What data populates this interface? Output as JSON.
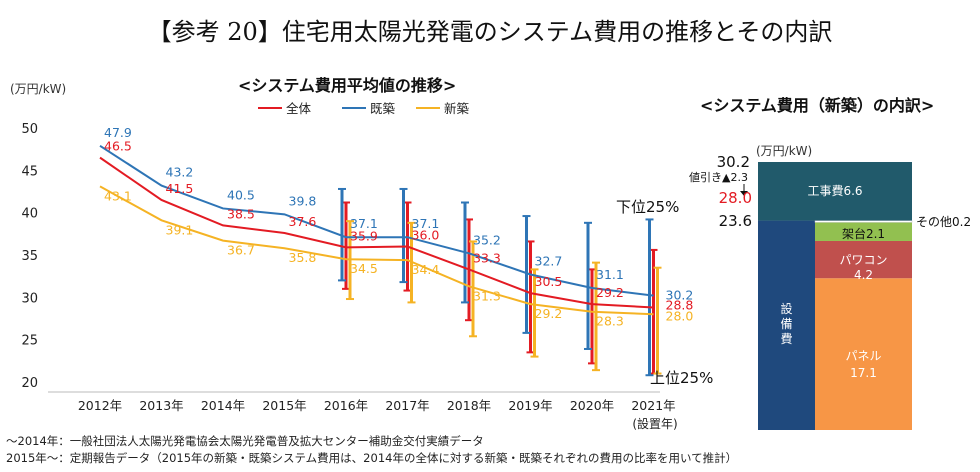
{
  "title": "【参考 20】住宅用太陽光発電のシステム費用の推移とその内訳",
  "left_chart": {
    "subtitle": "<システム費用平均値の推移>",
    "unit": "(万円/kW)"
  },
  "right_chart": {
    "subtitle": "<システム費用（新築）の内訳>",
    "unit": "(万円/kW)"
  },
  "footnotes": [
    "～2014年：一般社団法人太陽光発電協会太陽光発電普及拡大センター補助金交付実績データ",
    "2015年～：定期報告データ（2015年の新築・既築システム費用は、2014年の全体に対する新築・既築それぞれの費用の比率を用いて推計）"
  ],
  "colors": {
    "zentai": "#e31b23",
    "kichiku": "#2e75b6",
    "shinchiku": "#f5b324",
    "koujihi": "#215a6b",
    "setsubihi": "#1f497d",
    "kadai": "#92c050",
    "pawakon": "#c0504d",
    "panel": "#f79646"
  },
  "chart_data": [
    {
      "type": "line",
      "title": "<システム費用平均値の推移>",
      "xlabel": "(設置年)",
      "ylabel": "(万円/kW)",
      "categories": [
        "2012年",
        "2013年",
        "2014年",
        "2015年",
        "2016年",
        "2017年",
        "2018年",
        "2019年",
        "2020年",
        "2021年"
      ],
      "ylim": [
        20,
        50
      ],
      "yticks": [
        20,
        25,
        30,
        35,
        40,
        45,
        50
      ],
      "grid": false,
      "legend": "top",
      "series": [
        {
          "name": "全体",
          "color": "#e31b23",
          "values": [
            46.5,
            41.5,
            38.5,
            37.6,
            35.9,
            36.0,
            33.3,
            30.5,
            29.2,
            28.8
          ],
          "range_low": [
            null,
            null,
            null,
            null,
            31.0,
            30.8,
            27.3,
            23.5,
            22.2,
            21.0
          ],
          "range_high": [
            null,
            null,
            null,
            null,
            41.2,
            41.2,
            39.2,
            36.6,
            33.3,
            35.6
          ]
        },
        {
          "name": "既築",
          "color": "#2e75b6",
          "values": [
            47.9,
            43.2,
            40.5,
            39.8,
            37.1,
            37.1,
            35.2,
            32.7,
            31.1,
            30.2
          ],
          "range_low": [
            null,
            null,
            null,
            null,
            32.0,
            31.8,
            29.4,
            25.8,
            23.9,
            20.8
          ],
          "range_high": [
            null,
            null,
            null,
            null,
            42.8,
            42.8,
            41.2,
            39.6,
            38.8,
            39.2
          ]
        },
        {
          "name": "新築",
          "color": "#f5b324",
          "values": [
            43.1,
            39.1,
            36.7,
            35.8,
            34.5,
            34.4,
            31.3,
            29.2,
            28.3,
            28.0
          ],
          "range_low": [
            null,
            null,
            null,
            null,
            29.8,
            29.4,
            25.4,
            23.0,
            21.4,
            21.0
          ],
          "range_high": [
            null,
            null,
            null,
            null,
            39.0,
            38.8,
            36.6,
            33.3,
            34.1,
            33.5
          ]
        }
      ],
      "annotations": [
        "下位25%",
        "上位25%"
      ]
    },
    {
      "type": "bar",
      "title": "<システム費用（新築）の内訳>",
      "ylabel": "(万円/kW)",
      "stacked": true,
      "components": [
        {
          "name": "パネル",
          "value": 17.1,
          "color": "#f79646",
          "label_lines": [
            "パネル",
            "17.1"
          ]
        },
        {
          "name": "パワコン",
          "value": 4.2,
          "color": "#c0504d",
          "label_lines": [
            "パワコン",
            "4.2"
          ]
        },
        {
          "name": "架台",
          "value": 2.1,
          "color": "#92c050",
          "label_lines": [
            "架台2.1"
          ]
        },
        {
          "name": "その他",
          "value": 0.2,
          "color": "#ffffff",
          "label_lines": [
            "その他0.2"
          ]
        },
        {
          "name": "工事費",
          "value": 6.6,
          "color": "#215a6b",
          "label_lines": [
            "工事費6.6"
          ]
        }
      ],
      "setsubihi": {
        "label_lines": [
          "設",
          "備",
          "費"
        ],
        "value": 23.6
      },
      "total_label": "30.2",
      "subtotal_label": "23.6",
      "discount_label": "値引き▲2.3",
      "net_total_label": "28.0",
      "net_total_color": "#e31b23"
    }
  ]
}
